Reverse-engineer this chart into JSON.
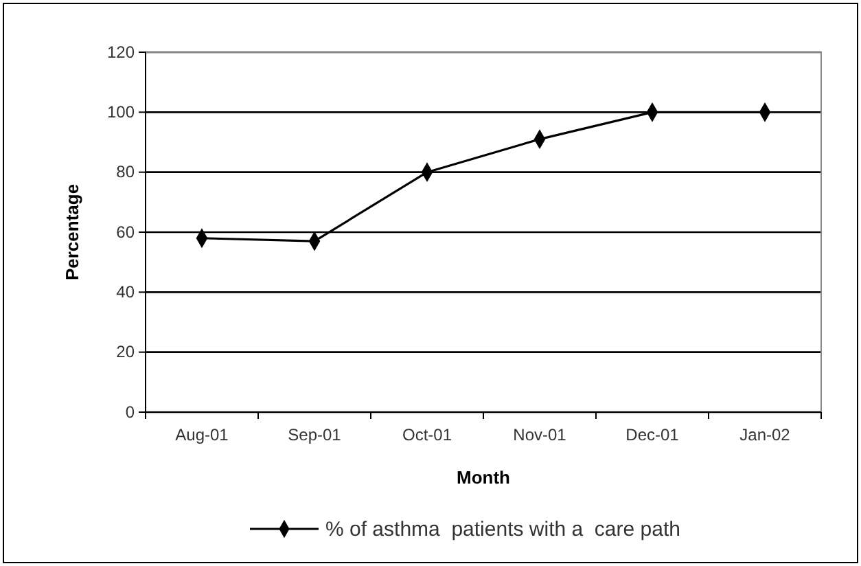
{
  "chart_data": {
    "type": "line",
    "xlabel": "Month",
    "ylabel": "Percentage",
    "categories": [
      "Aug-01",
      "Sep-01",
      "Oct-01",
      "Nov-01",
      "Dec-01",
      "Jan-02"
    ],
    "series": [
      {
        "name": "% of asthma  patients with a  care path",
        "color": "#000000",
        "values": [
          58,
          57,
          80,
          91,
          100,
          100
        ]
      }
    ],
    "ylim": [
      0,
      120
    ],
    "yticks": [
      0,
      20,
      40,
      60,
      80,
      100,
      120
    ],
    "grid": "y",
    "legend": "bottom",
    "marker": "diamond",
    "line_style": "solid"
  }
}
